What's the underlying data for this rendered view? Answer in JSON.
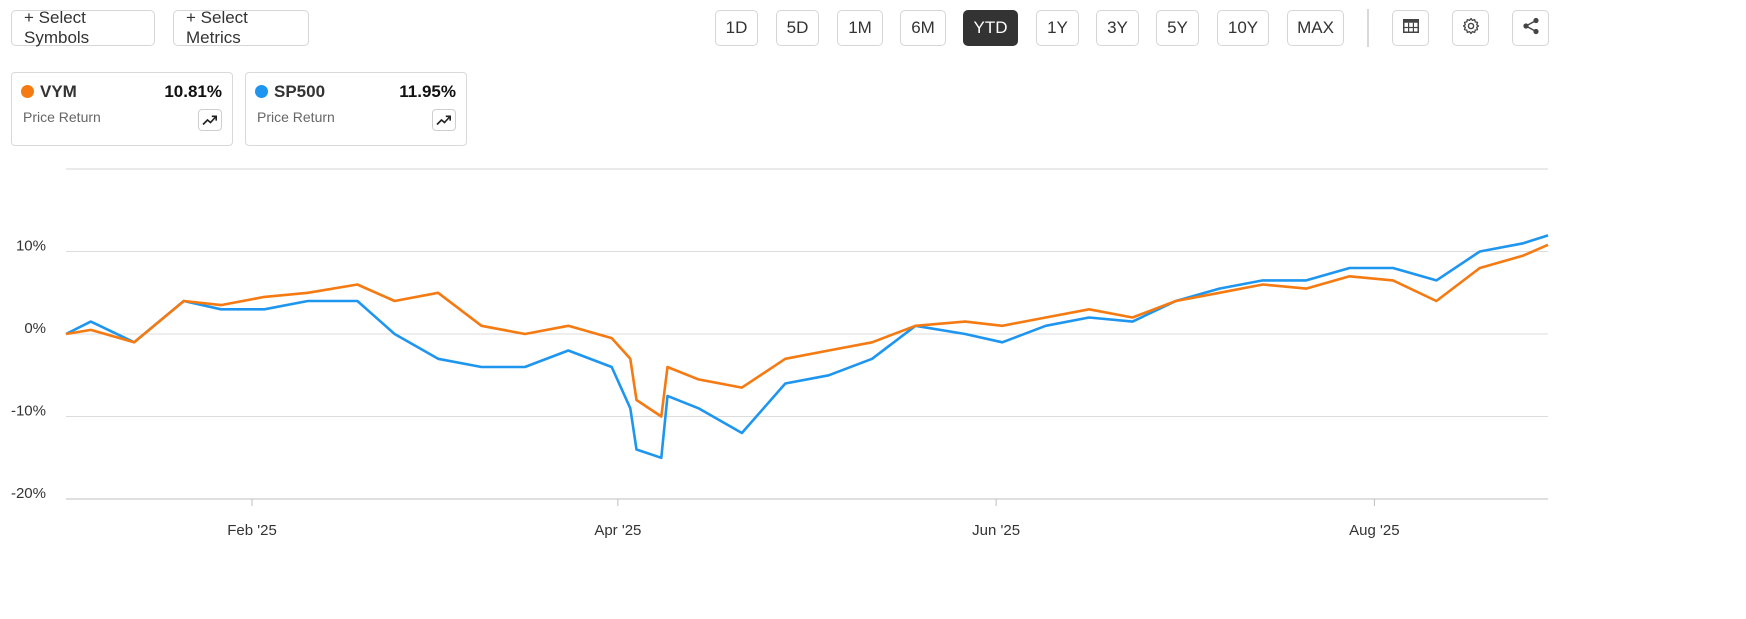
{
  "toolbar": {
    "select_symbols": "+ Select Symbols",
    "select_metrics": "+ Select Metrics",
    "ranges": [
      "1D",
      "5D",
      "1M",
      "6M",
      "YTD",
      "1Y",
      "3Y",
      "5Y",
      "10Y",
      "MAX"
    ],
    "active_range": "YTD",
    "icons": [
      "table-icon",
      "gear-icon",
      "share-icon"
    ]
  },
  "cards": [
    {
      "symbol": "VYM",
      "value": "10.81%",
      "metric": "Price Return",
      "color": "#f57a12"
    },
    {
      "symbol": "SP500",
      "value": "11.95%",
      "metric": "Price Return",
      "color": "#1e96f0"
    }
  ],
  "chart_data": {
    "type": "line",
    "title": "",
    "xlabel": "",
    "ylabel": "",
    "ylim": [
      -20,
      20
    ],
    "y_ticks": [
      10,
      0,
      -10,
      -20
    ],
    "y_tick_labels": [
      "10%",
      "0%",
      "-10%",
      "-20%"
    ],
    "x_ticks": [
      "Feb '25",
      "Apr '25",
      "Jun '25",
      "Aug '25"
    ],
    "grid": true,
    "legend": "top-left cards",
    "series": [
      {
        "name": "VYM",
        "color": "#f57a12",
        "x": [
          "2025-01-02",
          "2025-01-06",
          "2025-01-13",
          "2025-01-21",
          "2025-01-27",
          "2025-02-03",
          "2025-02-10",
          "2025-02-18",
          "2025-02-24",
          "2025-03-03",
          "2025-03-10",
          "2025-03-17",
          "2025-03-24",
          "2025-03-31",
          "2025-04-03",
          "2025-04-04",
          "2025-04-08",
          "2025-04-09",
          "2025-04-14",
          "2025-04-21",
          "2025-04-28",
          "2025-05-05",
          "2025-05-12",
          "2025-05-19",
          "2025-05-27",
          "2025-06-02",
          "2025-06-09",
          "2025-06-16",
          "2025-06-23",
          "2025-06-30",
          "2025-07-07",
          "2025-07-14",
          "2025-07-21",
          "2025-07-28",
          "2025-08-04",
          "2025-08-11",
          "2025-08-18",
          "2025-08-25",
          "2025-08-29"
        ],
        "values": [
          0,
          0.5,
          -1,
          4,
          3.5,
          4.5,
          5,
          6,
          4,
          5,
          1,
          0,
          1,
          -0.5,
          -3,
          -8,
          -10,
          -4,
          -5.5,
          -6.5,
          -3,
          -2,
          -1,
          1,
          1.5,
          1,
          2,
          3,
          2,
          4,
          5,
          6,
          5.5,
          7,
          6.5,
          4,
          8,
          9.5,
          10.81
        ]
      },
      {
        "name": "SP500",
        "color": "#1e96f0",
        "x": [
          "2025-01-02",
          "2025-01-06",
          "2025-01-13",
          "2025-01-21",
          "2025-01-27",
          "2025-02-03",
          "2025-02-10",
          "2025-02-18",
          "2025-02-24",
          "2025-03-03",
          "2025-03-10",
          "2025-03-17",
          "2025-03-24",
          "2025-03-31",
          "2025-04-03",
          "2025-04-04",
          "2025-04-08",
          "2025-04-09",
          "2025-04-14",
          "2025-04-21",
          "2025-04-28",
          "2025-05-05",
          "2025-05-12",
          "2025-05-19",
          "2025-05-27",
          "2025-06-02",
          "2025-06-09",
          "2025-06-16",
          "2025-06-23",
          "2025-06-30",
          "2025-07-07",
          "2025-07-14",
          "2025-07-21",
          "2025-07-28",
          "2025-08-04",
          "2025-08-11",
          "2025-08-18",
          "2025-08-25",
          "2025-08-29"
        ],
        "values": [
          0,
          1.5,
          -1,
          4,
          3,
          3,
          4,
          4,
          0,
          -3,
          -4,
          -4,
          -2,
          -4,
          -9,
          -14,
          -15,
          -7.5,
          -9,
          -12,
          -6,
          -5,
          -3,
          1,
          0,
          -1,
          1,
          2,
          1.5,
          4,
          5.5,
          6.5,
          6.5,
          8,
          8,
          6.5,
          10,
          11,
          11.95
        ]
      }
    ]
  }
}
